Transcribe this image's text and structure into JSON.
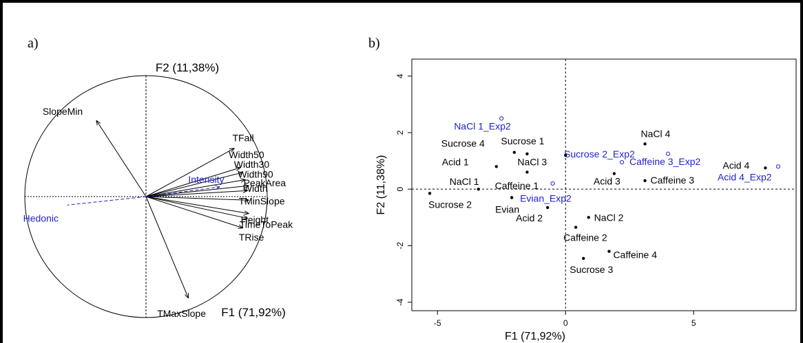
{
  "panels": {
    "a": {
      "letter": "a)"
    },
    "b": {
      "letter": "b)"
    }
  },
  "chart_data": [
    {
      "type": "correlation-circle",
      "panel": "a",
      "xlabel": "F1 (71,92%)",
      "ylabel": "F2 (11,38%)",
      "xlim": [
        -1,
        1
      ],
      "ylim": [
        -1,
        1
      ],
      "active_color": "#000000",
      "supplementary_color": "#2222cc",
      "variables": [
        {
          "name": "SlopeMin",
          "x": -0.41,
          "y": 0.63,
          "supplementary": false
        },
        {
          "name": "TFall",
          "x": 0.73,
          "y": 0.4,
          "supplementary": false
        },
        {
          "name": "Width50",
          "x": 0.78,
          "y": 0.24,
          "supplementary": false
        },
        {
          "name": "Width30",
          "x": 0.8,
          "y": 0.2,
          "supplementary": false
        },
        {
          "name": "Width90",
          "x": 0.82,
          "y": 0.14,
          "supplementary": false
        },
        {
          "name": "PeakArea",
          "x": 0.85,
          "y": 0.09,
          "supplementary": false
        },
        {
          "name": "Width",
          "x": 0.84,
          "y": 0.05,
          "supplementary": false
        },
        {
          "name": "TMinSlope",
          "x": 0.85,
          "y": -0.03,
          "supplementary": false
        },
        {
          "name": "Height",
          "x": 0.85,
          "y": -0.14,
          "supplementary": false
        },
        {
          "name": "TimeToPeak",
          "x": 0.84,
          "y": -0.18,
          "supplementary": false
        },
        {
          "name": "TRise",
          "x": 0.8,
          "y": -0.26,
          "supplementary": false
        },
        {
          "name": "TMaxSlope",
          "x": 0.35,
          "y": -0.84,
          "supplementary": false
        },
        {
          "name": "Intensity",
          "x": 0.61,
          "y": 0.08,
          "supplementary": true
        },
        {
          "name": "Hedonic",
          "x": -0.65,
          "y": -0.07,
          "supplementary": true
        }
      ]
    },
    {
      "type": "scatter",
      "panel": "b",
      "xlabel": "F1 (71,92%)",
      "ylabel": "F2 (11,38%)",
      "xlim": [
        -6,
        9
      ],
      "ylim": [
        -4.3,
        4.6
      ],
      "xticks": [
        -5,
        0,
        5
      ],
      "yticks": [
        -4,
        -2,
        0,
        2,
        4
      ],
      "xtick_labels": [
        "-5",
        "0",
        "5"
      ],
      "ytick_labels": [
        "-4",
        "-2",
        "0",
        "2",
        "4"
      ],
      "reference_lines": {
        "x": 0,
        "y": 0
      },
      "active_color": "#000000",
      "supplementary_color": "#2222cc",
      "points": [
        {
          "label": "NaCl 1_Exp2",
          "x": -2.5,
          "y": 2.5,
          "supplementary": true
        },
        {
          "label": "Sucrose 1",
          "x": -1.5,
          "y": 1.25,
          "supplementary": false
        },
        {
          "label": "Sucrose 4",
          "x": -2.0,
          "y": 1.3,
          "supplementary": false
        },
        {
          "label": "Acid 1",
          "x": -2.7,
          "y": 0.8,
          "supplementary": false
        },
        {
          "label": "NaCl 3",
          "x": -1.5,
          "y": 0.6,
          "supplementary": false
        },
        {
          "label": "Sucrose 2_Exp2",
          "x": 2.2,
          "y": 0.95,
          "supplementary": true
        },
        {
          "label": "NaCl 4",
          "x": 3.1,
          "y": 1.6,
          "supplementary": false
        },
        {
          "label": "Caffeine 3_Exp2",
          "x": 4.0,
          "y": 1.25,
          "supplementary": true
        },
        {
          "label": "Acid 4",
          "x": 7.8,
          "y": 0.75,
          "supplementary": false
        },
        {
          "label": "Acid 4_Exp2",
          "x": 8.3,
          "y": 0.8,
          "supplementary": true
        },
        {
          "label": "Acid 3",
          "x": 1.9,
          "y": 0.55,
          "supplementary": false
        },
        {
          "label": "Caffeine 3",
          "x": 3.1,
          "y": 0.3,
          "supplementary": false
        },
        {
          "label": "NaCl 1",
          "x": -3.4,
          "y": 0.0,
          "supplementary": false
        },
        {
          "label": "Caffeine 1",
          "x": -0.5,
          "y": 0.2,
          "supplementary": true
        },
        {
          "label": "Sucrose 2",
          "x": -5.3,
          "y": -0.15,
          "supplementary": false
        },
        {
          "label": "Evian_Exp2",
          "x": -2.1,
          "y": -0.3,
          "supplementary": false
        },
        {
          "label": "Evian",
          "x": -2.1,
          "y": -0.3,
          "supplementary": false
        },
        {
          "label": "Acid 2",
          "x": -0.7,
          "y": -0.65,
          "supplementary": false
        },
        {
          "label": "NaCl 2",
          "x": 0.9,
          "y": -1.0,
          "supplementary": false
        },
        {
          "label": "Caffeine 2",
          "x": 0.4,
          "y": -1.35,
          "supplementary": false
        },
        {
          "label": "Caffeine 4",
          "x": 1.7,
          "y": -2.2,
          "supplementary": false
        },
        {
          "label": "Sucrose 3",
          "x": 0.7,
          "y": -2.45,
          "supplementary": false
        },
        {
          "label": "",
          "x": 0.0,
          "y": 1.2,
          "supplementary": false
        }
      ]
    }
  ]
}
